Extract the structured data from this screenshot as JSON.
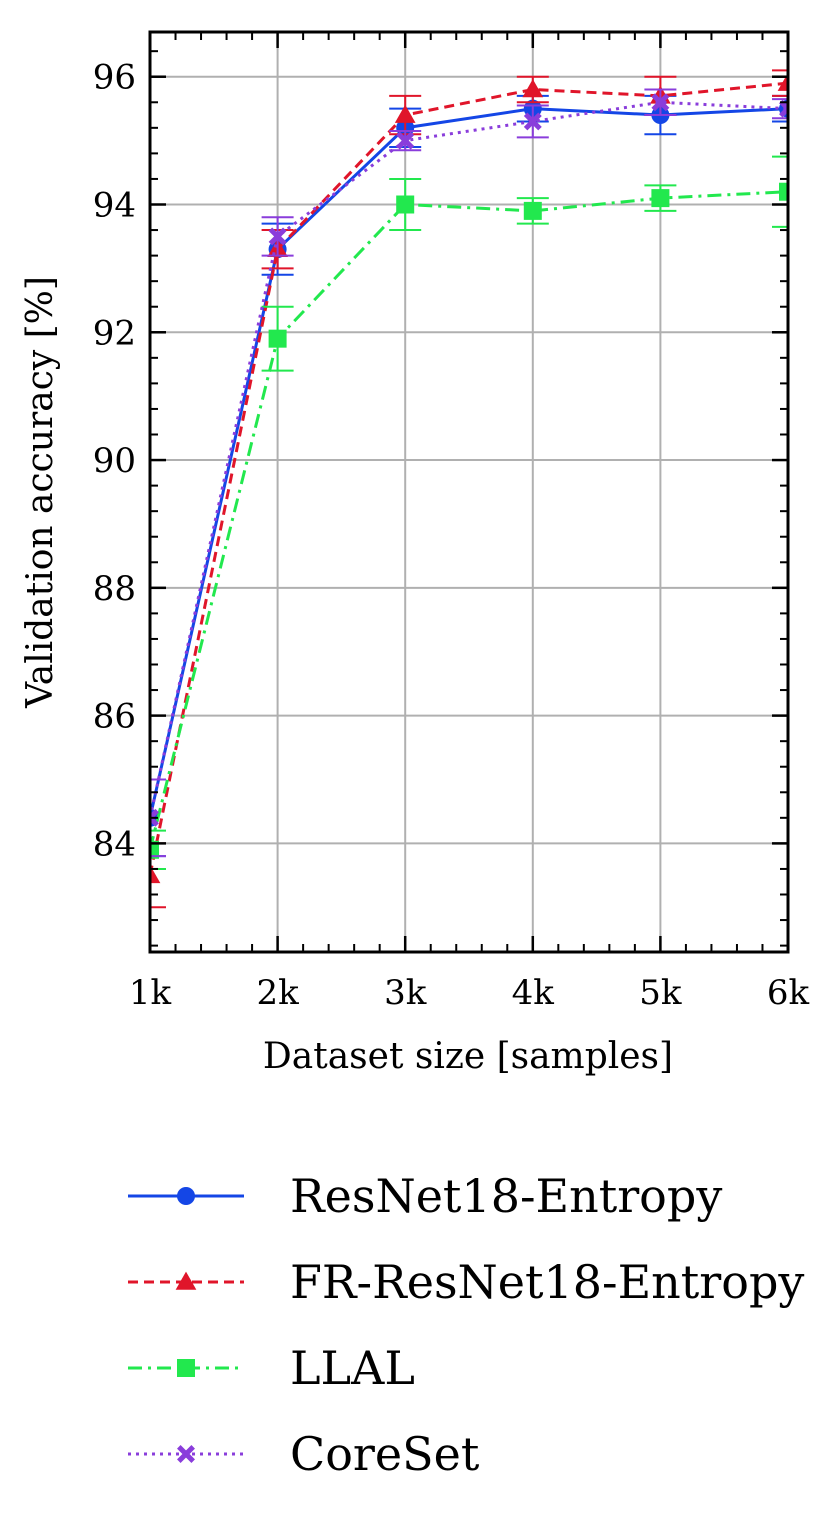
{
  "chart_data": {
    "type": "line",
    "title": "",
    "xlabel": "Dataset size [samples]",
    "ylabel": "Validation accuracy [%]",
    "x": [
      1,
      2,
      3,
      4,
      5,
      6
    ],
    "xtick_labels": [
      "1k",
      "2k",
      "3k",
      "4k",
      "5k",
      "6k"
    ],
    "xlim": [
      1,
      6
    ],
    "ylim": [
      82.3,
      96.7
    ],
    "yticks": [
      84,
      86,
      88,
      90,
      92,
      94,
      96
    ],
    "grid": true,
    "legend_position": "below",
    "series": [
      {
        "name": "ResNet18-Entropy",
        "color": "#1446e6",
        "line_style": "solid",
        "marker": "circle",
        "values": [
          84.4,
          93.3,
          95.2,
          95.5,
          95.4,
          95.5
        ],
        "errors": [
          0.6,
          0.4,
          0.3,
          0.2,
          0.3,
          0.2
        ]
      },
      {
        "name": "FR-ResNet18-Entropy",
        "color": "#e0152a",
        "line_style": "dashed",
        "marker": "triangle",
        "values": [
          83.5,
          93.3,
          95.4,
          95.8,
          95.7,
          95.9
        ],
        "errors": [
          0.5,
          0.3,
          0.3,
          0.2,
          0.3,
          0.2
        ]
      },
      {
        "name": "LLAL",
        "color": "#22e84e",
        "line_style": "dashdot",
        "marker": "square",
        "values": [
          83.9,
          91.9,
          94.0,
          93.9,
          94.1,
          94.2
        ],
        "errors": [
          0.3,
          0.5,
          0.4,
          0.2,
          0.2,
          0.55
        ]
      },
      {
        "name": "CoreSet",
        "color": "#8a3ddb",
        "line_style": "dotted",
        "marker": "x",
        "values": [
          84.4,
          93.5,
          95.0,
          95.3,
          95.6,
          95.5
        ],
        "errors": [
          0.6,
          0.3,
          0.15,
          0.25,
          0.2,
          0.15
        ]
      }
    ]
  }
}
